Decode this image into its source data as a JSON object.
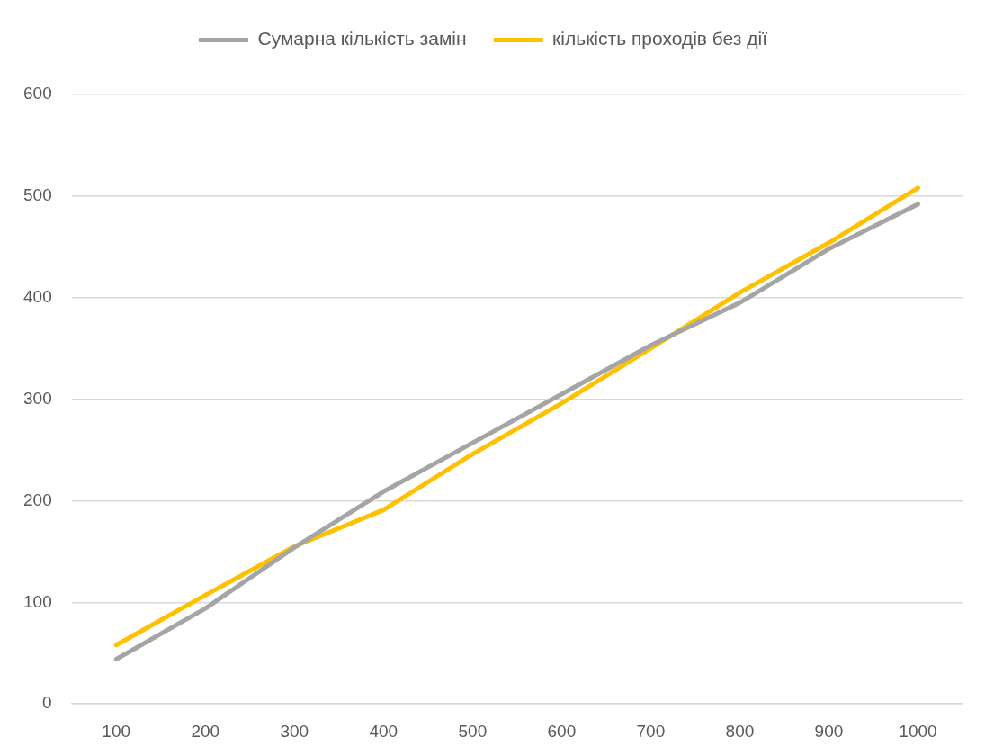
{
  "chart_data": {
    "type": "line",
    "categories": [
      "100",
      "200",
      "300",
      "400",
      "500",
      "600",
      "700",
      "800",
      "900",
      "1000"
    ],
    "series": [
      {
        "name": "Сумарна кількість замін",
        "color": "#a5a5a5",
        "values": [
          44,
          94,
          154,
          209,
          257,
          305,
          353,
          395,
          448,
          492
        ]
      },
      {
        "name": "кількість проходів без дії",
        "color": "#ffc000",
        "values": [
          58,
          107,
          155,
          191,
          246,
          296,
          350,
          405,
          454,
          508
        ]
      }
    ],
    "ylim": [
      0,
      600
    ],
    "yticks": [
      0,
      100,
      200,
      300,
      400,
      500,
      600
    ],
    "grid": "y",
    "legend": "top",
    "marker": "none",
    "line_style": "solid"
  }
}
